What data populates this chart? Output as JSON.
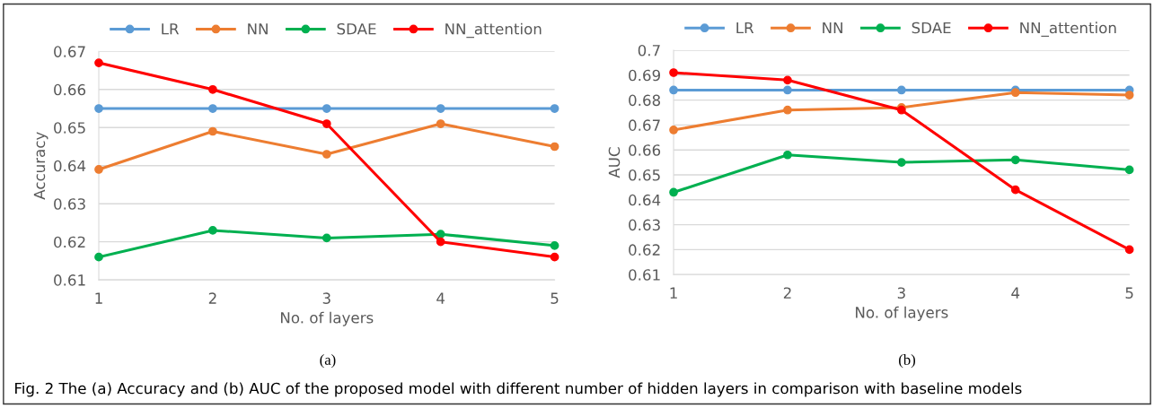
{
  "chart_data": [
    {
      "type": "line",
      "xlabel": "No. of layers",
      "ylabel": "Accuracy",
      "categories": [
        "1",
        "2",
        "3",
        "4",
        "5"
      ],
      "ylim": [
        0.61,
        0.67
      ],
      "yticks": [
        0.61,
        0.62,
        0.63,
        0.64,
        0.65,
        0.66,
        0.67
      ],
      "grid": "y",
      "legend": "top",
      "marker": "circle",
      "series": [
        {
          "name": "LR",
          "color": "#5b9bd5",
          "values": [
            0.655,
            0.655,
            0.655,
            0.655,
            0.655
          ]
        },
        {
          "name": "NN",
          "color": "#ed7d31",
          "values": [
            0.639,
            0.649,
            0.643,
            0.651,
            0.645
          ]
        },
        {
          "name": "SDAE",
          "color": "#00b050",
          "values": [
            0.616,
            0.623,
            0.621,
            0.622,
            0.619
          ]
        },
        {
          "name": "NN_attention",
          "color": "#ff0000",
          "values": [
            0.667,
            0.66,
            0.651,
            0.62,
            0.616
          ]
        }
      ],
      "annotations": [
        "(a)"
      ]
    },
    {
      "type": "line",
      "xlabel": "No. of layers",
      "ylabel": "AUC",
      "categories": [
        "1",
        "2",
        "3",
        "4",
        "5"
      ],
      "ylim": [
        0.61,
        0.7
      ],
      "yticks": [
        0.61,
        0.62,
        0.63,
        0.64,
        0.65,
        0.66,
        0.67,
        0.68,
        0.69,
        0.7
      ],
      "grid": "y",
      "legend": "top",
      "marker": "circle",
      "series": [
        {
          "name": "LR",
          "color": "#5b9bd5",
          "values": [
            0.684,
            0.684,
            0.684,
            0.684,
            0.684
          ]
        },
        {
          "name": "NN",
          "color": "#ed7d31",
          "values": [
            0.668,
            0.676,
            0.677,
            0.683,
            0.682
          ]
        },
        {
          "name": "SDAE",
          "color": "#00b050",
          "values": [
            0.643,
            0.658,
            0.655,
            0.656,
            0.652
          ]
        },
        {
          "name": "NN_attention",
          "color": "#ff0000",
          "values": [
            0.691,
            0.688,
            0.676,
            0.644,
            0.62
          ]
        }
      ],
      "annotations": [
        "(b)",
        "Fig. 2 The (a) Accuracy and (b) AUC of the proposed model with different number of hidden layers in comparison with baseline models"
      ]
    }
  ]
}
